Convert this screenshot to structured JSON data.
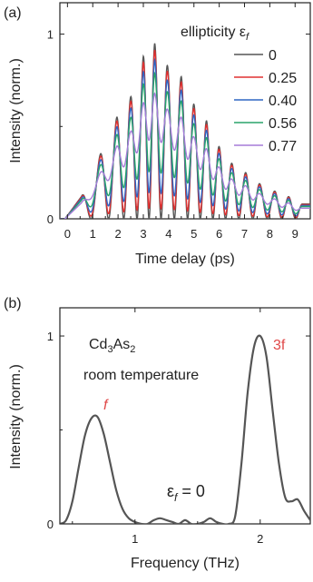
{
  "chart_data": [
    {
      "panel_label": "(a)",
      "type": "line",
      "xlabel": "Time delay (ps)",
      "ylabel": "Intensity (norm.)",
      "xlim": [
        -0.3,
        9.6
      ],
      "ylim": [
        0,
        1.17
      ],
      "xticks": [
        "0",
        "1",
        "2",
        "3",
        "4",
        "5",
        "6",
        "7",
        "8",
        "9"
      ],
      "yticks": [
        "0",
        "1"
      ],
      "legend_title": "ellipticity ε",
      "legend_title_sub": "f",
      "legend_placement": "top-right",
      "peak_times": [
        0.55,
        1.3,
        1.95,
        2.5,
        3.0,
        3.45,
        3.95,
        4.5,
        5.0,
        5.5,
        6.0,
        6.5,
        7.05,
        7.6,
        8.2,
        8.75,
        9.3
      ],
      "peak_values": [
        0.12,
        0.35,
        0.55,
        0.66,
        0.88,
        0.95,
        0.83,
        0.77,
        0.62,
        0.53,
        0.39,
        0.3,
        0.25,
        0.19,
        0.15,
        0.12,
        0.08
      ],
      "series": [
        {
          "name": "0",
          "color": "#555555",
          "modulation": 1.0
        },
        {
          "name": "0.25",
          "color": "#e03030",
          "modulation": 0.9
        },
        {
          "name": "0.40",
          "color": "#2f66c4",
          "modulation": 0.75
        },
        {
          "name": "0.56",
          "color": "#2aa36a",
          "modulation": 0.55
        },
        {
          "name": "0.77",
          "color": "#a57bd8",
          "modulation": 0.25
        }
      ]
    },
    {
      "panel_label": "(b)",
      "type": "line",
      "xlabel": "Frequency (THz)",
      "ylabel": "Intensity (norm.)",
      "xlim": [
        0.4,
        2.4
      ],
      "ylim": [
        0,
        1.15
      ],
      "xticks": [
        "1",
        "2"
      ],
      "yticks": [
        "0",
        "1"
      ],
      "annotations": {
        "material": "Cd",
        "material_sub1": "3",
        "material_mid": "As",
        "material_sub2": "2",
        "condition": "room temperature",
        "peak1": "f",
        "peak2": "3f",
        "ellipticity_prefix": "ε",
        "ellipticity_sub": "f",
        "ellipticity_value": " = 0"
      },
      "series": [
        {
          "name": "",
          "color": "#555555",
          "x": [
            0.4,
            0.45,
            0.5,
            0.55,
            0.6,
            0.65,
            0.7,
            0.75,
            0.8,
            0.85,
            0.9,
            0.95,
            1.0,
            1.05,
            1.1,
            1.15,
            1.2,
            1.25,
            1.3,
            1.35,
            1.4,
            1.45,
            1.5,
            1.55,
            1.6,
            1.65,
            1.7,
            1.75,
            1.8,
            1.85,
            1.9,
            1.95,
            2.0,
            2.05,
            2.1,
            2.15,
            2.2,
            2.25,
            2.3,
            2.35,
            2.4
          ],
          "y": [
            0.0,
            0.02,
            0.12,
            0.3,
            0.47,
            0.56,
            0.57,
            0.48,
            0.33,
            0.18,
            0.08,
            0.03,
            0.01,
            0.0,
            0.0,
            0.02,
            0.03,
            0.02,
            0.01,
            0.0,
            0.02,
            0.0,
            0.0,
            0.01,
            0.03,
            0.01,
            0.0,
            0.0,
            0.04,
            0.32,
            0.7,
            0.94,
            1.0,
            0.89,
            0.6,
            0.32,
            0.14,
            0.12,
            0.13,
            0.07,
            0.02
          ]
        }
      ]
    }
  ]
}
